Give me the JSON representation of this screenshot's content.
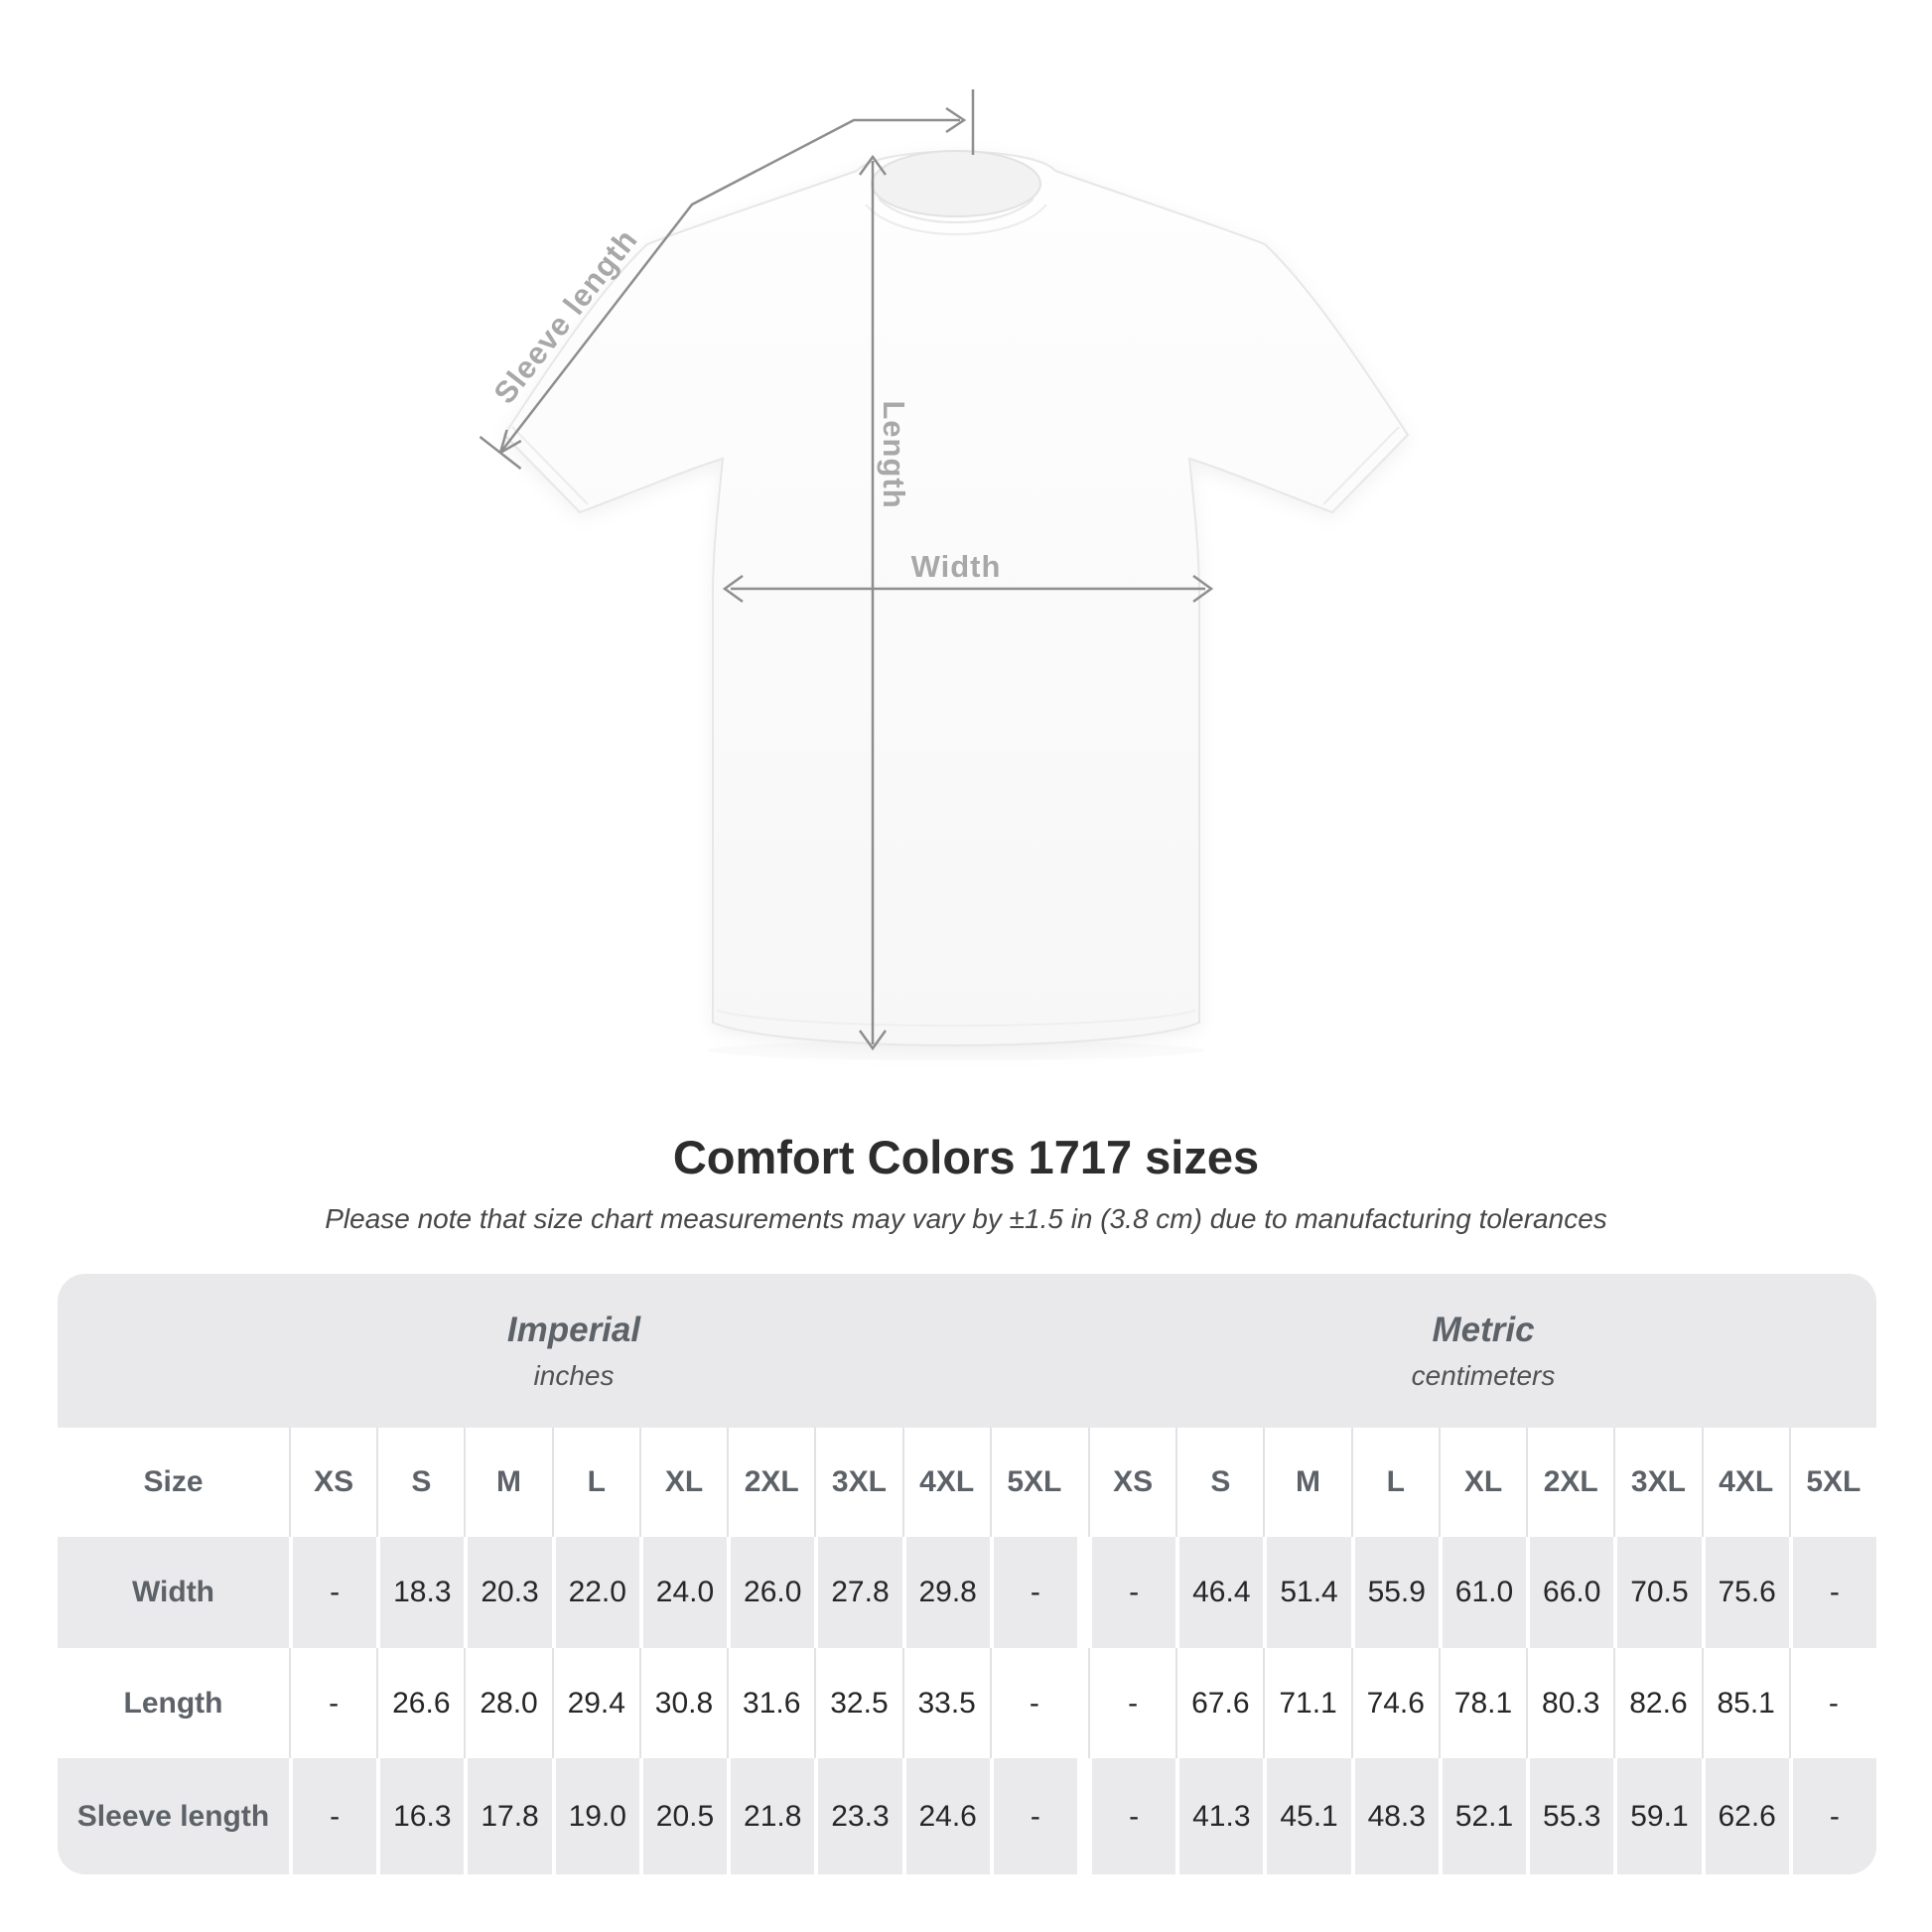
{
  "title": "Comfort Colors 1717 sizes",
  "subtitle": "Please note that size chart measurements may vary by ±1.5 in (3.8 cm) due to manufacturing tolerances",
  "diagram": {
    "labels": {
      "sleeve_length": "Sleeve length",
      "length": "Length",
      "width": "Width"
    }
  },
  "table": {
    "imperial": {
      "title": "Imperial",
      "unit": "inches"
    },
    "metric": {
      "title": "Metric",
      "unit": "centimeters"
    },
    "size_label": "Size",
    "sizes": [
      "XS",
      "S",
      "M",
      "L",
      "XL",
      "2XL",
      "3XL",
      "4XL",
      "5XL"
    ],
    "rows": [
      {
        "label": "Width",
        "imperial": [
          "-",
          "18.3",
          "20.3",
          "22.0",
          "24.0",
          "26.0",
          "27.8",
          "29.8",
          "-"
        ],
        "metric": [
          "-",
          "46.4",
          "51.4",
          "55.9",
          "61.0",
          "66.0",
          "70.5",
          "75.6",
          "-"
        ]
      },
      {
        "label": "Length",
        "imperial": [
          "-",
          "26.6",
          "28.0",
          "29.4",
          "30.8",
          "31.6",
          "32.5",
          "33.5",
          "-"
        ],
        "metric": [
          "-",
          "67.6",
          "71.1",
          "74.6",
          "78.1",
          "80.3",
          "82.6",
          "85.1",
          "-"
        ]
      },
      {
        "label": "Sleeve length",
        "imperial": [
          "-",
          "16.3",
          "17.8",
          "19.0",
          "20.5",
          "21.8",
          "23.3",
          "24.6",
          "-"
        ],
        "metric": [
          "-",
          "41.3",
          "45.1",
          "48.3",
          "52.1",
          "55.3",
          "59.1",
          "62.6",
          "-"
        ]
      }
    ]
  },
  "colors": {
    "measure_line": "#8e8e8e",
    "measure_label": "#a8a8a8",
    "table_band_bg": "#e9e9eb",
    "table_gray_row_bg": "#eaeaec",
    "heading_text": "#5c6268",
    "value_text": "#262626",
    "title_text": "#2d2d2d",
    "subtitle_text": "#474747"
  }
}
